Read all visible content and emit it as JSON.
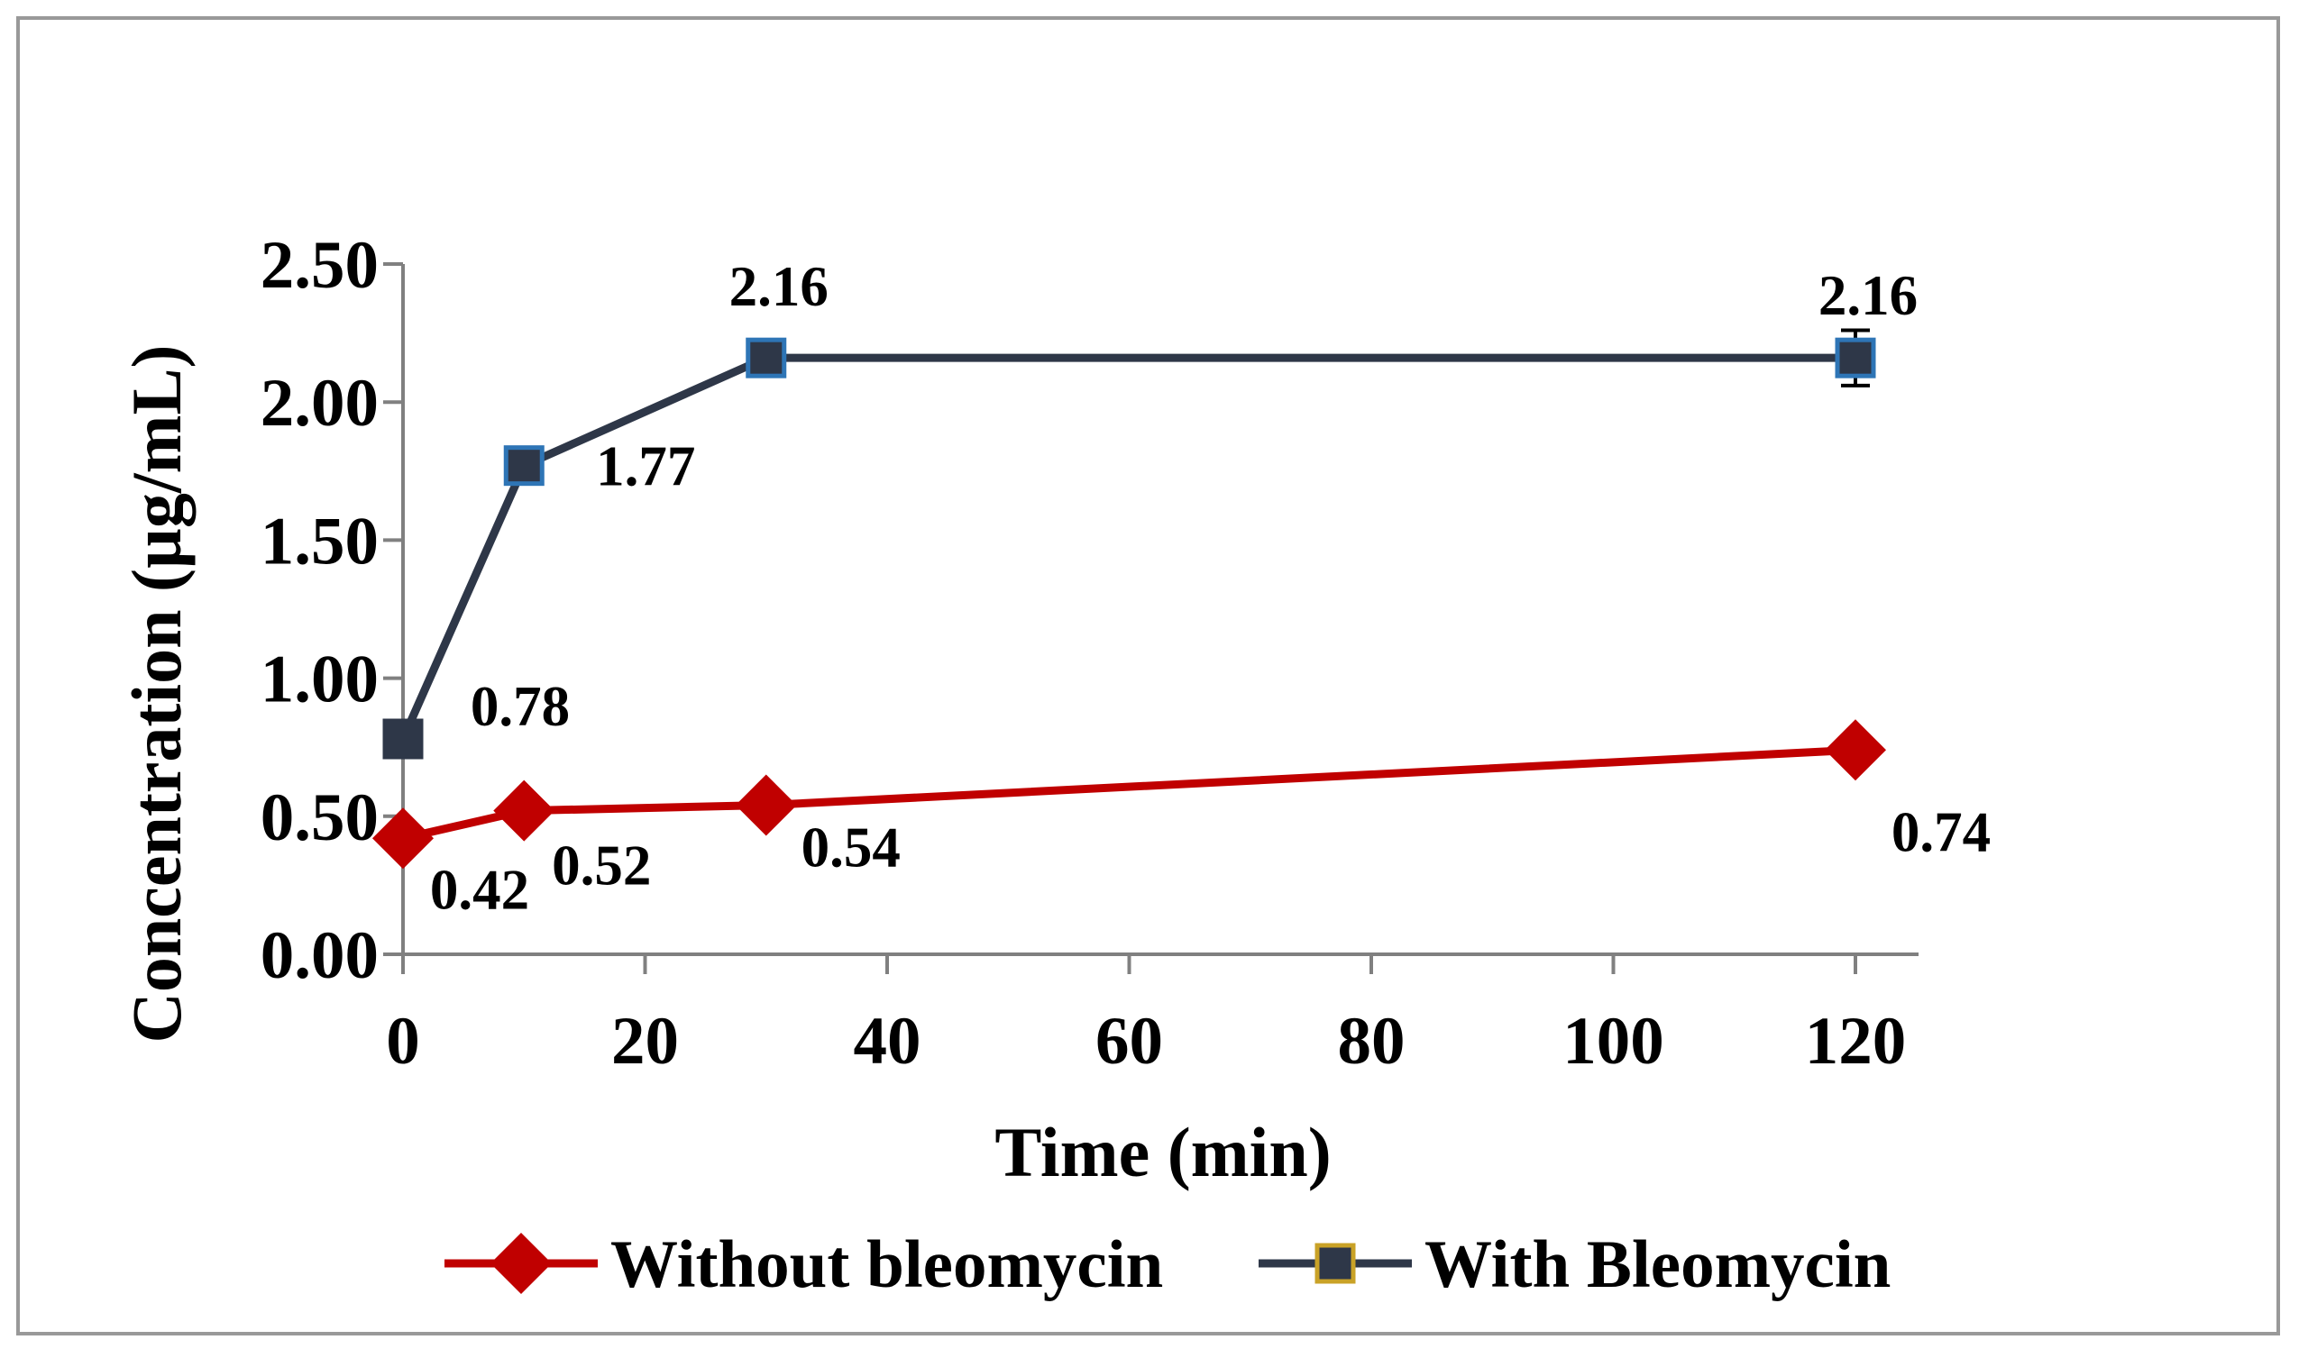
{
  "chart_data": {
    "type": "line",
    "title": "",
    "xlabel": "Time (min)",
    "ylabel": "Concentration (µg/mL)",
    "xlim": [
      0,
      120
    ],
    "ylim": [
      0,
      2.5
    ],
    "x_ticks": [
      0,
      20,
      40,
      60,
      80,
      100,
      120
    ],
    "x_tick_labels": [
      "0",
      "20",
      "40",
      "60",
      "80",
      "100",
      "120"
    ],
    "y_ticks": [
      0,
      0.5,
      1,
      1.5,
      2,
      2.5
    ],
    "y_tick_labels": [
      "0.00",
      "0.50",
      "1.00",
      "1.50",
      "2.00",
      "2.50"
    ],
    "grid": false,
    "legend_position": "bottom",
    "series": [
      {
        "name": "Without bleomycin",
        "color": "#C00000",
        "marker": "diamond",
        "x": [
          0,
          10,
          30,
          120
        ],
        "values": [
          0.42,
          0.52,
          0.54,
          0.74
        ],
        "labels": [
          "0.42",
          "0.52",
          "0.54",
          "0.74"
        ]
      },
      {
        "name": "With Bleomycin",
        "color": "#2E3748",
        "marker": "square",
        "marker_edge_color": "#2E75B6",
        "legend_marker_edge_color": "#C9A227",
        "x": [
          0,
          10,
          30,
          120
        ],
        "values": [
          0.78,
          1.77,
          2.16,
          2.16
        ],
        "labels": [
          "0.78",
          "1.77",
          "2.16",
          "2.16"
        ],
        "error": [
          0,
          0,
          0,
          0.1
        ]
      }
    ]
  },
  "colors": {
    "axis": "#808080",
    "frame": "#999999",
    "text": "#000000"
  }
}
